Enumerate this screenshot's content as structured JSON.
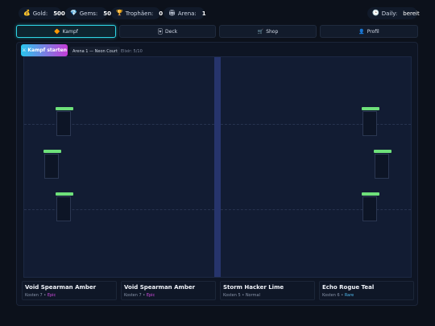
{
  "stats": {
    "gold": {
      "icon": "💰",
      "label": "Gold:",
      "value": "500"
    },
    "gems": {
      "icon": "💎",
      "label": "Gems:",
      "value": "50"
    },
    "trophies": {
      "icon": "🏆",
      "label": "Trophäen:",
      "value": "0"
    },
    "arena": {
      "icon": "🏟",
      "label": "Arena:",
      "value": "1"
    },
    "daily": {
      "icon": "🕒",
      "label": "Daily:",
      "value": "bereit"
    }
  },
  "tabs": [
    {
      "icon": "🔶",
      "label": "Kampf"
    },
    {
      "icon": "🃏",
      "label": "Deck"
    },
    {
      "icon": "🛒",
      "label": "Shop"
    },
    {
      "icon": "👤",
      "label": "Profil"
    }
  ],
  "battle": {
    "start_icon": "⚔",
    "start_label": "Kampf starten",
    "arena_name": "Arena 1 — Neon Court",
    "elixir": "Elixir: 5/10"
  },
  "colors": {
    "accent": "#2fd6e6",
    "health_bar": "#6ee07a",
    "epic": "#d24be0",
    "rare": "#4fb7ea",
    "divider": "#26346c"
  },
  "cards": [
    {
      "name": "Void Spearman Amber",
      "cost": "Kosten 7",
      "sep": "•",
      "rarity": "Epic"
    },
    {
      "name": "Void Spearman Amber",
      "cost": "Kosten 7",
      "sep": "•",
      "rarity": "Epic"
    },
    {
      "name": "Storm Hacker Lime",
      "cost": "Kosten 5",
      "sep": "•",
      "rarity": "Normal"
    },
    {
      "name": "Echo Rogue Teal",
      "cost": "Kosten 6",
      "sep": "•",
      "rarity": "Rare"
    }
  ]
}
